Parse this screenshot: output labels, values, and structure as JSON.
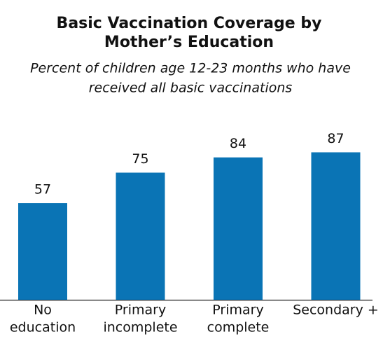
{
  "chart_data": {
    "type": "bar",
    "title": [
      "Basic Vaccination Coverage by",
      "Mother’s Education"
    ],
    "subtitle": [
      "Percent of children age 12-23 months who have",
      "received all basic vaccinations"
    ],
    "categories": [
      [
        "No",
        "education"
      ],
      [
        "Primary",
        "incomplete"
      ],
      [
        "Primary",
        "complete"
      ],
      [
        "Secondary +"
      ]
    ],
    "values": [
      57,
      75,
      84,
      87
    ],
    "color": "#0a74b5"
  }
}
